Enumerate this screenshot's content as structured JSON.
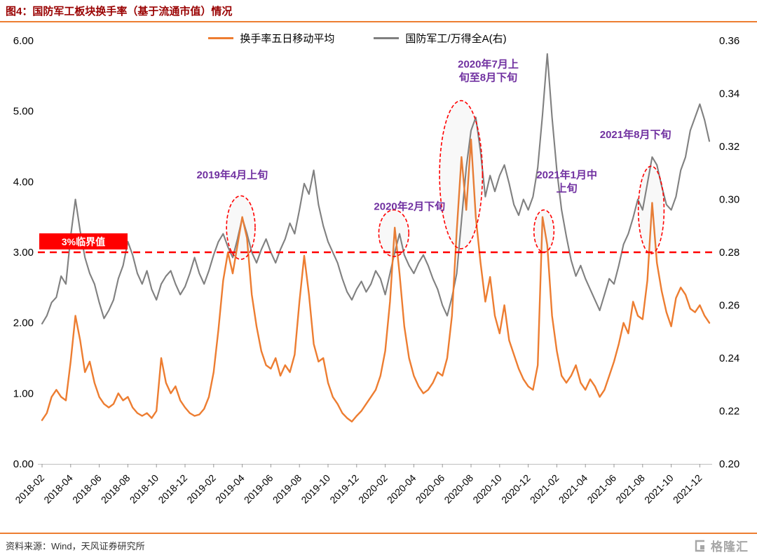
{
  "page": {
    "title": "图4：国防军工板块换手率（基于流通市值）情况",
    "source": "资料来源：Wind，天风证券研究所",
    "logo_text": "格隆汇"
  },
  "colors": {
    "accent_orange": "#ED7D31",
    "series_gray": "#808080",
    "title_red": "#990000",
    "threshold_red": "#FF0000",
    "annotation_purple": "#7030A0"
  },
  "chart_data": {
    "type": "line",
    "title": "图4：国防军工板块换手率（基于流通市值）情况",
    "x_start": "2018-02",
    "points_per_month": 3,
    "x_tick_labels": [
      "2018-02",
      "2018-04",
      "2018-06",
      "2018-08",
      "2018-10",
      "2018-12",
      "2019-02",
      "2019-04",
      "2019-06",
      "2019-08",
      "2019-10",
      "2019-12",
      "2020-02",
      "2020-04",
      "2020-06",
      "2020-08",
      "2020-10",
      "2020-12",
      "2021-02",
      "2021-04",
      "2021-06",
      "2021-08",
      "2021-10",
      "2021-12"
    ],
    "x_tick_month_step": 2,
    "left_axis": {
      "min": 0,
      "max": 6,
      "ticks": [
        "0.00",
        "1.00",
        "2.00",
        "3.00",
        "4.00",
        "5.00",
        "6.00"
      ]
    },
    "right_axis": {
      "min": 0.2,
      "max": 0.36,
      "ticks": [
        "0.20",
        "0.22",
        "0.24",
        "0.26",
        "0.28",
        "0.30",
        "0.32",
        "0.34",
        "0.36"
      ]
    },
    "legend_position": "top-center",
    "grid": false,
    "threshold": {
      "value": 3.0,
      "label": "3%临界值",
      "color": "#FF0000"
    },
    "series": [
      {
        "name": "换手率五日移动平均",
        "axis": "left",
        "color": "#ED7D31",
        "values": [
          0.62,
          0.72,
          0.95,
          1.05,
          0.95,
          0.9,
          1.45,
          2.1,
          1.75,
          1.3,
          1.45,
          1.15,
          0.95,
          0.85,
          0.8,
          0.85,
          1.0,
          0.9,
          0.95,
          0.8,
          0.72,
          0.68,
          0.72,
          0.65,
          0.75,
          1.5,
          1.15,
          1.0,
          1.1,
          0.9,
          0.8,
          0.72,
          0.68,
          0.7,
          0.78,
          0.95,
          1.3,
          1.9,
          2.6,
          3.0,
          2.7,
          3.1,
          3.5,
          3.2,
          2.4,
          1.95,
          1.6,
          1.4,
          1.35,
          1.5,
          1.25,
          1.4,
          1.3,
          1.55,
          2.3,
          2.95,
          2.4,
          1.7,
          1.45,
          1.5,
          1.15,
          0.95,
          0.85,
          0.72,
          0.65,
          0.6,
          0.68,
          0.75,
          0.85,
          0.95,
          1.05,
          1.25,
          1.6,
          2.3,
          3.35,
          2.7,
          1.95,
          1.5,
          1.25,
          1.1,
          1.0,
          1.05,
          1.15,
          1.3,
          1.25,
          1.5,
          2.1,
          3.3,
          4.35,
          3.6,
          4.6,
          3.5,
          2.85,
          2.3,
          2.65,
          2.1,
          1.85,
          2.25,
          1.75,
          1.55,
          1.35,
          1.2,
          1.1,
          1.05,
          1.4,
          3.5,
          3.1,
          2.1,
          1.6,
          1.25,
          1.15,
          1.25,
          1.4,
          1.15,
          1.05,
          1.2,
          1.1,
          0.95,
          1.05,
          1.25,
          1.45,
          1.7,
          2.0,
          1.85,
          2.3,
          2.1,
          2.05,
          2.6,
          3.7,
          2.85,
          2.45,
          2.15,
          1.95,
          2.35,
          2.5,
          2.4,
          2.2,
          2.15,
          2.25,
          2.1,
          2.0
        ]
      },
      {
        "name": "国防军工/万得全A(右)",
        "axis": "right",
        "color": "#808080",
        "values": [
          0.253,
          0.256,
          0.261,
          0.263,
          0.271,
          0.268,
          0.286,
          0.3,
          0.288,
          0.278,
          0.272,
          0.268,
          0.261,
          0.255,
          0.258,
          0.262,
          0.27,
          0.275,
          0.284,
          0.279,
          0.272,
          0.268,
          0.273,
          0.266,
          0.262,
          0.268,
          0.271,
          0.273,
          0.268,
          0.264,
          0.267,
          0.272,
          0.278,
          0.272,
          0.268,
          0.273,
          0.279,
          0.284,
          0.287,
          0.282,
          0.278,
          0.285,
          0.293,
          0.287,
          0.28,
          0.276,
          0.281,
          0.285,
          0.28,
          0.276,
          0.281,
          0.285,
          0.291,
          0.287,
          0.296,
          0.306,
          0.302,
          0.311,
          0.298,
          0.29,
          0.284,
          0.28,
          0.276,
          0.27,
          0.265,
          0.262,
          0.266,
          0.269,
          0.265,
          0.268,
          0.273,
          0.27,
          0.264,
          0.272,
          0.28,
          0.287,
          0.279,
          0.275,
          0.272,
          0.276,
          0.279,
          0.275,
          0.27,
          0.266,
          0.26,
          0.256,
          0.263,
          0.272,
          0.292,
          0.312,
          0.326,
          0.331,
          0.318,
          0.301,
          0.309,
          0.303,
          0.309,
          0.313,
          0.306,
          0.298,
          0.294,
          0.3,
          0.296,
          0.301,
          0.312,
          0.332,
          0.355,
          0.331,
          0.311,
          0.296,
          0.286,
          0.277,
          0.271,
          0.275,
          0.27,
          0.266,
          0.262,
          0.258,
          0.264,
          0.27,
          0.268,
          0.275,
          0.283,
          0.287,
          0.293,
          0.3,
          0.296,
          0.306,
          0.316,
          0.313,
          0.305,
          0.298,
          0.296,
          0.301,
          0.311,
          0.316,
          0.326,
          0.331,
          0.336,
          0.33,
          0.322
        ]
      }
    ],
    "annotations": [
      {
        "lines": [
          "2019年4月上旬"
        ],
        "month_offset": 13.3,
        "value": 4.05
      },
      {
        "lines": [
          "2020年2月下旬"
        ],
        "month_offset": 25.7,
        "value": 3.6
      },
      {
        "lines": [
          "2020年7月上",
          "旬至8月下旬"
        ],
        "month_offset": 31.2,
        "value": 5.62
      },
      {
        "lines": [
          "2021年1月中",
          "上旬"
        ],
        "month_offset": 36.7,
        "value": 4.05
      },
      {
        "lines": [
          "2021年8月下旬"
        ],
        "month_offset": 41.5,
        "value": 4.62
      }
    ],
    "ellipses": [
      {
        "month_offset": 13.9,
        "value": 3.35,
        "rx_months": 1.0,
        "ry_value": 0.45
      },
      {
        "month_offset": 24.6,
        "value": 3.27,
        "rx_months": 1.05,
        "ry_value": 0.33
      },
      {
        "month_offset": 29.3,
        "value": 4.1,
        "rx_months": 1.5,
        "ry_value": 1.05
      },
      {
        "month_offset": 35.1,
        "value": 3.3,
        "rx_months": 0.7,
        "ry_value": 0.3
      },
      {
        "month_offset": 42.6,
        "value": 3.6,
        "rx_months": 0.9,
        "ry_value": 0.62
      }
    ]
  }
}
